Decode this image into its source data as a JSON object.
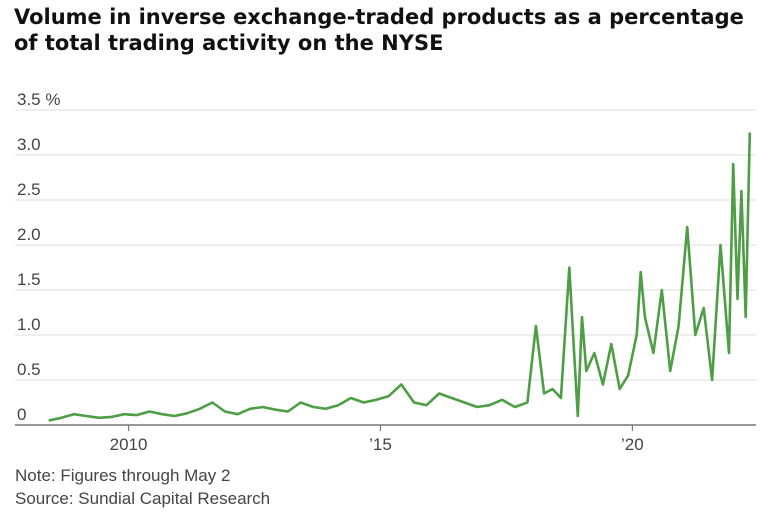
{
  "chart_data": {
    "type": "line",
    "title": "Volume in inverse exchange-traded products as a percentage of total trading activity on the NYSE",
    "subtitle": "",
    "xlabel": "",
    "ylabel": "",
    "ylim": [
      0,
      3.5
    ],
    "xlim": [
      "2007-10-01",
      "2022-06-15"
    ],
    "y_ticks": [
      {
        "value": 3.5,
        "label": "3.5 %"
      },
      {
        "value": 3.0,
        "label": "3.0"
      },
      {
        "value": 2.5,
        "label": "2.5"
      },
      {
        "value": 2.0,
        "label": "2.0"
      },
      {
        "value": 1.5,
        "label": "1.5"
      },
      {
        "value": 1.0,
        "label": "1.0"
      },
      {
        "value": 0.5,
        "label": "0.5"
      },
      {
        "value": 0,
        "label": "0"
      }
    ],
    "x_ticks": [
      {
        "value": "2010-01-01",
        "label": "2010"
      },
      {
        "value": "2015-01-01",
        "label": "’15"
      },
      {
        "value": "2020-01-01",
        "label": "’20"
      }
    ],
    "grid": true,
    "legend": "none",
    "series_color": "#4d9e45",
    "series": [
      {
        "x": [
          "2008-06",
          "2008-09",
          "2008-12",
          "2009-03",
          "2009-06",
          "2009-09",
          "2009-12",
          "2010-03",
          "2010-06",
          "2010-09",
          "2010-12",
          "2011-03",
          "2011-06",
          "2011-09",
          "2011-12",
          "2012-03",
          "2012-06",
          "2012-09",
          "2012-12",
          "2013-03",
          "2013-06",
          "2013-09",
          "2013-12",
          "2014-03",
          "2014-06",
          "2014-09",
          "2014-12",
          "2015-03",
          "2015-06",
          "2015-09",
          "2015-12",
          "2016-03",
          "2016-06",
          "2016-09",
          "2016-12",
          "2017-03",
          "2017-06",
          "2017-09",
          "2017-12",
          "2018-02",
          "2018-04",
          "2018-06",
          "2018-08",
          "2018-10",
          "2018-11",
          "2018-12",
          "2019-01",
          "2019-02",
          "2019-04",
          "2019-06",
          "2019-08",
          "2019-10",
          "2019-12",
          "2020-02",
          "2020-03",
          "2020-04",
          "2020-06",
          "2020-08",
          "2020-10",
          "2020-12",
          "2021-02",
          "2021-04",
          "2021-06",
          "2021-08",
          "2021-10",
          "2021-12",
          "2022-01",
          "2022-02",
          "2022-03",
          "2022-04",
          "2022-05"
        ],
        "y": [
          0.05,
          0.08,
          0.12,
          0.1,
          0.08,
          0.09,
          0.12,
          0.11,
          0.15,
          0.12,
          0.1,
          0.13,
          0.18,
          0.25,
          0.15,
          0.12,
          0.18,
          0.2,
          0.17,
          0.15,
          0.25,
          0.2,
          0.18,
          0.22,
          0.3,
          0.25,
          0.28,
          0.32,
          0.45,
          0.25,
          0.22,
          0.35,
          0.3,
          0.25,
          0.2,
          0.22,
          0.28,
          0.2,
          0.25,
          1.1,
          0.35,
          0.4,
          0.3,
          1.75,
          0.9,
          0.1,
          1.2,
          0.6,
          0.8,
          0.45,
          0.9,
          0.4,
          0.55,
          1.0,
          1.7,
          1.2,
          0.8,
          1.5,
          0.6,
          1.1,
          2.2,
          1.0,
          1.3,
          0.5,
          2.0,
          0.8,
          2.9,
          1.4,
          2.6,
          1.2,
          3.25
        ]
      }
    ],
    "notes": [
      "Note: Figures through May 2",
      "Source: Sundial Capital Research"
    ]
  }
}
